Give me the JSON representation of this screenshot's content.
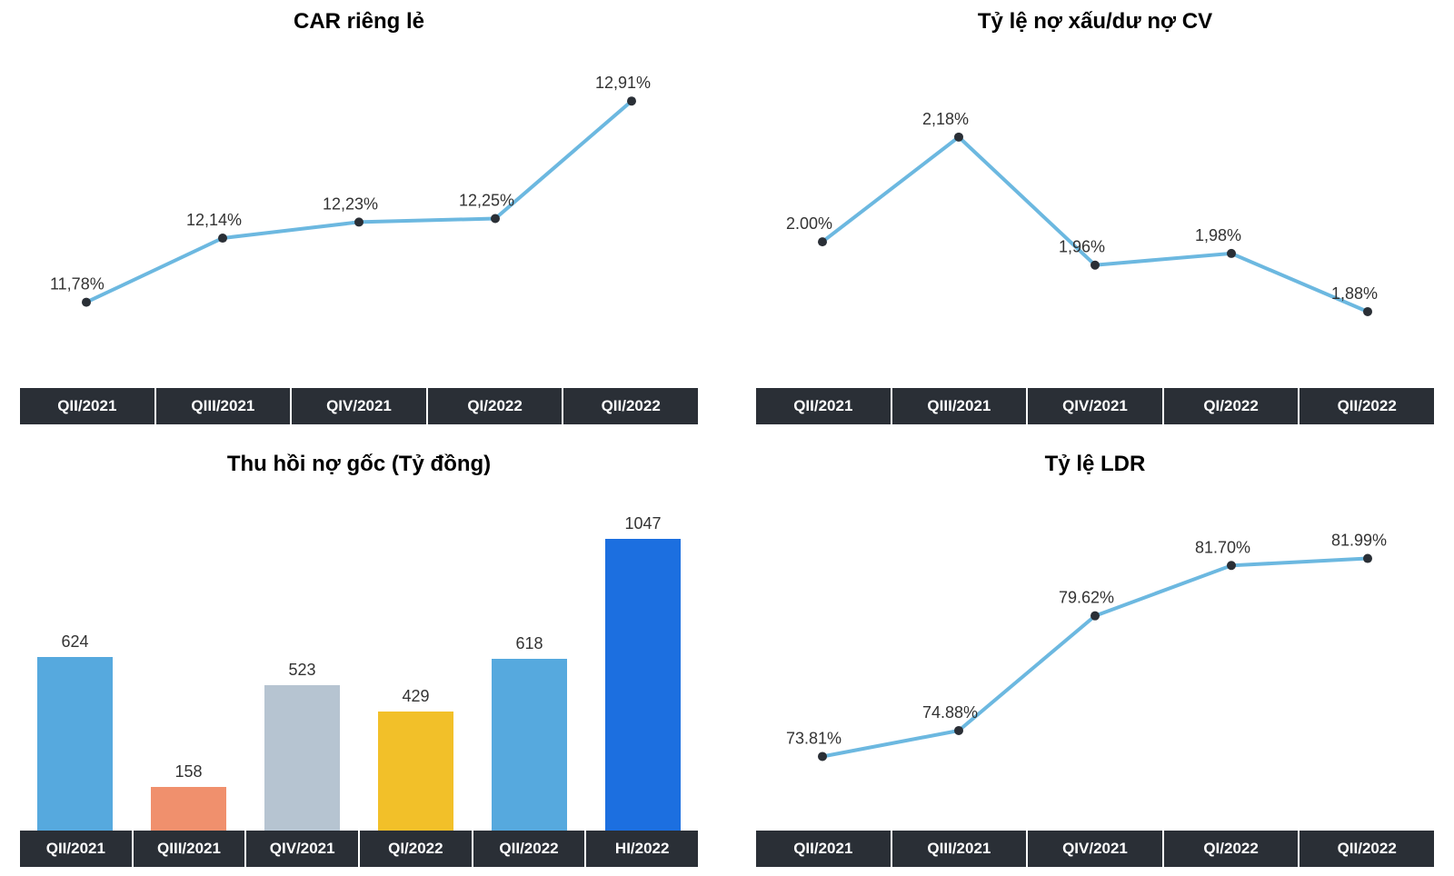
{
  "background_color": "#ffffff",
  "axis_bar_bg": "#2a2f36",
  "axis_bar_text": "#ffffff",
  "title_color": "#000000",
  "title_fontsize": 24,
  "label_fontsize": 18,
  "car_chart": {
    "type": "line",
    "title": "CAR riêng lẻ",
    "categories": [
      "QII/2021",
      "QIII/2021",
      "QIV/2021",
      "QI/2022",
      "QII/2022"
    ],
    "values": [
      11.78,
      12.14,
      12.23,
      12.25,
      12.91
    ],
    "value_labels": [
      "11,78%",
      "12,14%",
      "12,23%",
      "12,25%",
      "12,91%"
    ],
    "ylim": [
      11.4,
      13.1
    ],
    "line_color": "#6cb8e0",
    "point_color": "#2a2f36",
    "line_width": 4,
    "point_radius": 5
  },
  "npl_chart": {
    "type": "line",
    "title": "Tỷ lệ nợ xấu/dư nợ CV",
    "categories": [
      "QII/2021",
      "QIII/2021",
      "QIV/2021",
      "QI/2022",
      "QII/2022"
    ],
    "values": [
      2.0,
      2.18,
      1.96,
      1.98,
      1.88
    ],
    "value_labels": [
      "2.00%",
      "2,18%",
      "1,96%",
      "1,98%",
      "1,88%"
    ],
    "ylim": [
      1.78,
      2.3
    ],
    "line_color": "#6cb8e0",
    "point_color": "#2a2f36",
    "line_width": 4,
    "point_radius": 5
  },
  "recovery_chart": {
    "type": "bar",
    "title": "Thu hồi nợ gốc (Tỷ đồng)",
    "categories": [
      "QII/2021",
      "QIII/2021",
      "QIV/2021",
      "QI/2022",
      "QII/2022",
      "HI/2022"
    ],
    "values": [
      624,
      158,
      523,
      429,
      618,
      1047
    ],
    "value_labels": [
      "624",
      "158",
      "523",
      "429",
      "618",
      "1047"
    ],
    "ylim": [
      0,
      1100
    ],
    "bar_colors": [
      "#56a9de",
      "#f0906d",
      "#b6c4d1",
      "#f2c029",
      "#56a9de",
      "#1c6fe0"
    ],
    "bar_width_pct": 66
  },
  "ldr_chart": {
    "type": "line",
    "title": "Tỷ lệ LDR",
    "categories": [
      "QII/2021",
      "QIII/2021",
      "QIV/2021",
      "QI/2022",
      "QII/2022"
    ],
    "values": [
      73.81,
      74.88,
      79.62,
      81.7,
      81.99
    ],
    "value_labels": [
      "73.81%",
      "74.88%",
      "79.62%",
      "81.70%",
      "81.99%"
    ],
    "ylim": [
      71.5,
      84.0
    ],
    "line_color": "#6cb8e0",
    "point_color": "#2a2f36",
    "line_width": 4,
    "point_radius": 5
  }
}
